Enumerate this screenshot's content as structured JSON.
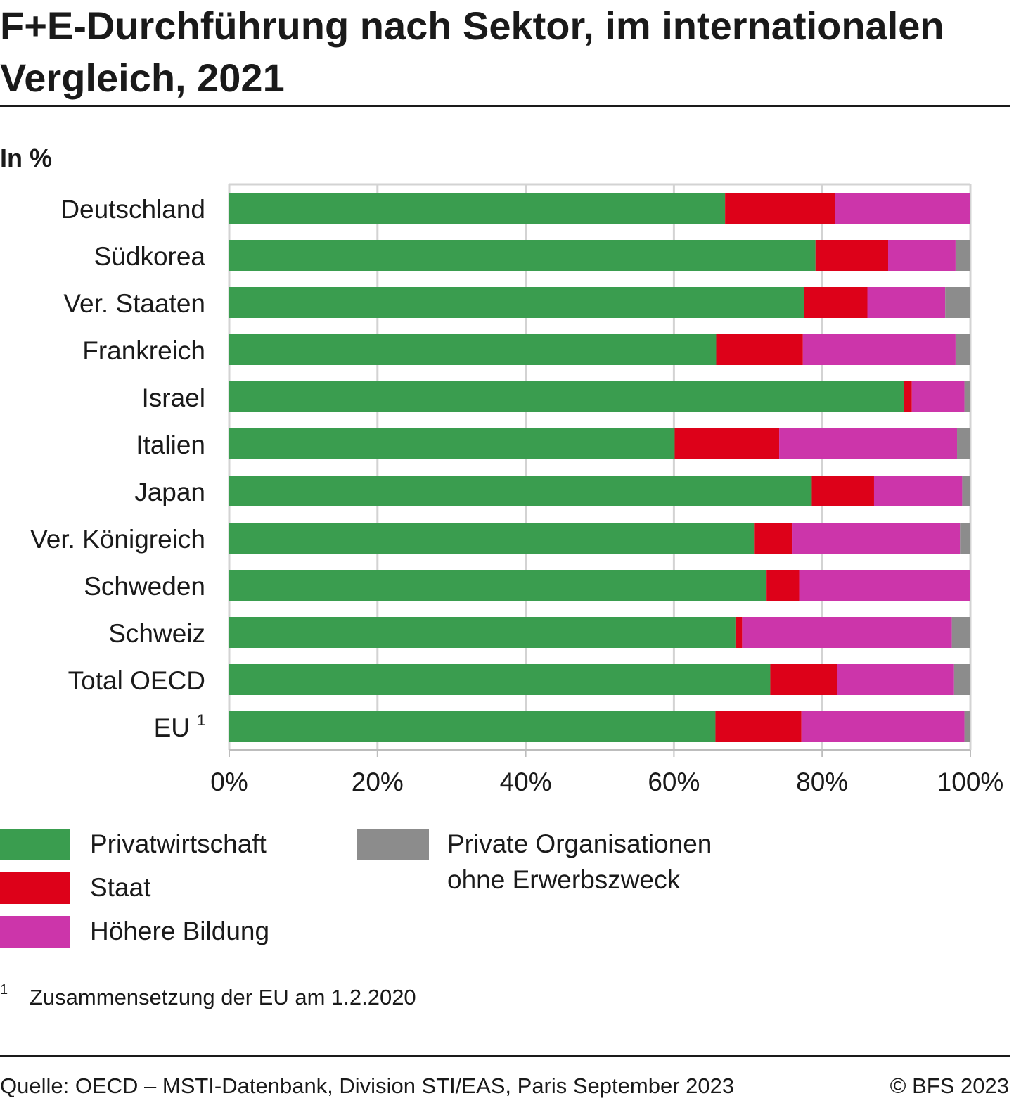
{
  "title": "F+E-Durchführung nach Sektor, im internationalen Vergleich, 2021",
  "unit_label": "In %",
  "chart_data": {
    "type": "bar",
    "orientation": "horizontal",
    "stacked": true,
    "categories": [
      "Deutschland",
      "Südkorea",
      "Ver. Staaten",
      "Frankreich",
      "Israel",
      "Italien",
      "Japan",
      "Ver. Königreich",
      "Schweden",
      "Schweiz",
      "Total OECD",
      "EU"
    ],
    "category_footnotes": {
      "EU": "1"
    },
    "series": [
      {
        "name": "Privatwirtschaft",
        "color": "#3a9d4f",
        "values": [
          66.9,
          79.1,
          77.6,
          65.7,
          91.0,
          60.1,
          78.6,
          70.9,
          72.5,
          68.3,
          73.0,
          65.6
        ]
      },
      {
        "name": "Staat",
        "color": "#dd0119",
        "values": [
          14.8,
          9.8,
          8.5,
          11.7,
          1.1,
          14.1,
          8.4,
          5.1,
          4.4,
          0.9,
          9.0,
          11.6
        ]
      },
      {
        "name": "Höhere Bildung",
        "color": "#cc35aa",
        "values": [
          18.3,
          9.1,
          10.5,
          20.6,
          7.1,
          24.0,
          11.9,
          22.6,
          23.1,
          28.3,
          15.8,
          22.0
        ]
      },
      {
        "name": "Private Organisationen ohne Erwerbszweck",
        "color": "#8c8c8c",
        "values": [
          0.0,
          2.0,
          3.4,
          2.0,
          0.8,
          1.8,
          1.1,
          1.4,
          0.0,
          2.5,
          2.2,
          0.8
        ]
      }
    ],
    "x_ticks": [
      "0%",
      "20%",
      "40%",
      "60%",
      "80%",
      "100%"
    ],
    "xlim": [
      0,
      100
    ],
    "grid": true,
    "legend_position": "bottom"
  },
  "legend": {
    "col1": [
      "Privatwirtschaft",
      "Staat",
      "Höhere Bildung"
    ],
    "col2_line1": "Private Organisationen",
    "col2_line2": "ohne Erwerbszweck"
  },
  "footnote": {
    "marker": "1",
    "text": "Zusammensetzung der EU am 1.2.2020"
  },
  "source": "Quelle: OECD – MSTI-Datenbank, Division STI/EAS, Paris September 2023",
  "copyright": "© BFS 2023"
}
